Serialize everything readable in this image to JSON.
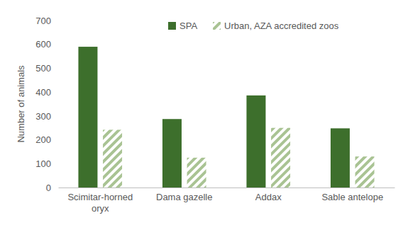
{
  "chart_data": {
    "type": "bar",
    "y_label": "Number of animals",
    "categories": [
      "Scimitar-horned oryx",
      "Dama gazelle",
      "Addax",
      "Sable antelope"
    ],
    "series": [
      {
        "name": "SPA",
        "color": "#3d6f2c",
        "values": [
          590,
          287,
          386,
          248
        ]
      },
      {
        "name": "Urban, AZA accredited zoos",
        "color": "#a9c393",
        "values": [
          242,
          125,
          250,
          130
        ]
      }
    ],
    "ylim": [
      0,
      700
    ],
    "yticks": [
      0,
      100,
      200,
      300,
      400,
      500,
      600,
      700
    ],
    "grid": false,
    "legend": "top"
  }
}
